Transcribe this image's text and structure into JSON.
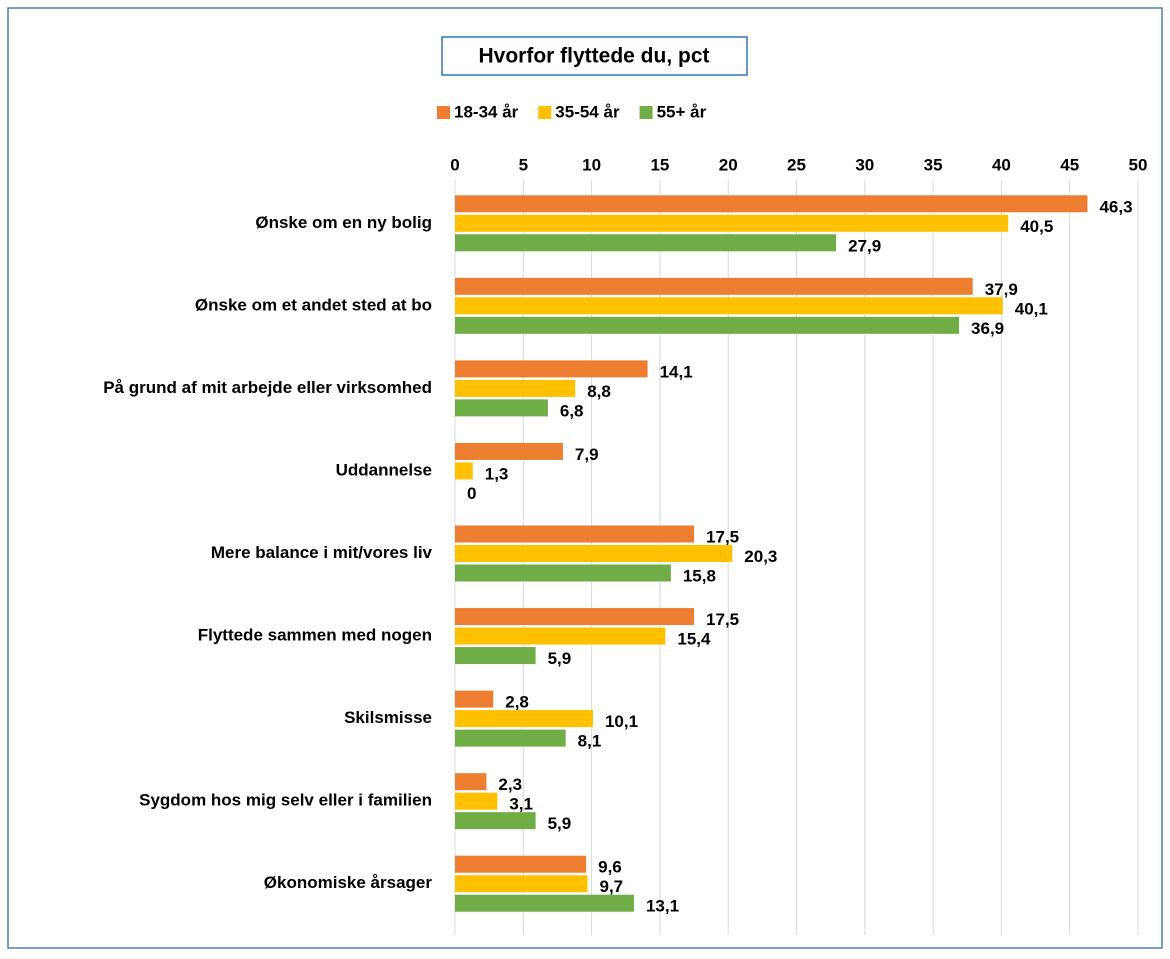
{
  "chart_data": {
    "type": "bar",
    "orientation": "horizontal",
    "title": "Hvorfor flyttede du, pct",
    "categories": [
      "Ønske om en ny bolig",
      "Ønske om et andet sted at bo",
      "På grund af mit arbejde eller virksomhed",
      "Uddannelse",
      "Mere balance i mit/vores liv",
      "Flyttede sammen med nogen",
      "Skilsmisse",
      "Sygdom hos mig selv eller i familien",
      "Økonomiske årsager"
    ],
    "series": [
      {
        "name": "18-34 år",
        "color": "#ed7d31",
        "values": [
          46.3,
          37.9,
          14.1,
          7.9,
          17.5,
          17.5,
          2.8,
          2.3,
          9.6
        ],
        "value_labels": [
          "46,3",
          "37,9",
          "14,1",
          "7,9",
          "17,5",
          "17,5",
          "2,8",
          "2,3",
          "9,6"
        ]
      },
      {
        "name": "35-54 år",
        "color": "#ffc000",
        "values": [
          40.5,
          40.1,
          8.8,
          1.3,
          20.3,
          15.4,
          10.1,
          3.1,
          9.7
        ],
        "value_labels": [
          "40,5",
          "40,1",
          "8,8",
          "1,3",
          "20,3",
          "15,4",
          "10,1",
          "3,1",
          "9,7"
        ]
      },
      {
        "name": "55+ år",
        "color": "#70ad47",
        "values": [
          27.9,
          36.9,
          6.8,
          0,
          15.8,
          5.9,
          8.1,
          5.9,
          13.1
        ],
        "value_labels": [
          "27,9",
          "36,9",
          "6,8",
          "0",
          "15,8",
          "5,9",
          "8,1",
          "5,9",
          "13,1"
        ]
      }
    ],
    "xlim": [
      0,
      50
    ],
    "xticks": [
      0,
      5,
      10,
      15,
      20,
      25,
      30,
      35,
      40,
      45,
      50
    ],
    "grid": true,
    "legend": "top"
  }
}
